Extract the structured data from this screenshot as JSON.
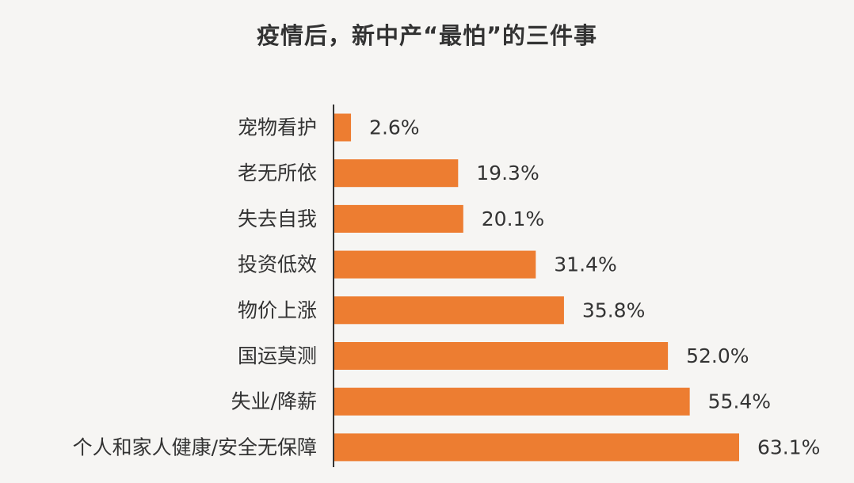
{
  "title": "疫情后，新中产“最怕”的三件事",
  "chart_data": {
    "type": "bar",
    "orientation": "horizontal",
    "title": "疫情后，新中产“最怕”的三件事",
    "categories": [
      "宠物看护",
      "老无所依",
      "失去自我",
      "投资低效",
      "物价上涨",
      "国运莫测",
      "失业/降薪",
      "个人和家人健康/安全无保障"
    ],
    "values": [
      2.6,
      19.3,
      20.1,
      31.4,
      35.8,
      52.0,
      55.4,
      63.1
    ],
    "value_labels": [
      "2.6%",
      "19.3%",
      "20.1%",
      "31.4%",
      "35.8%",
      "52.0%",
      "55.4%",
      "63.1%"
    ],
    "unit": "%",
    "xlim": [
      0,
      63.1
    ],
    "grid": false,
    "legend": "none",
    "bar_color": "#ed7d31",
    "axis_color": "#333333"
  }
}
